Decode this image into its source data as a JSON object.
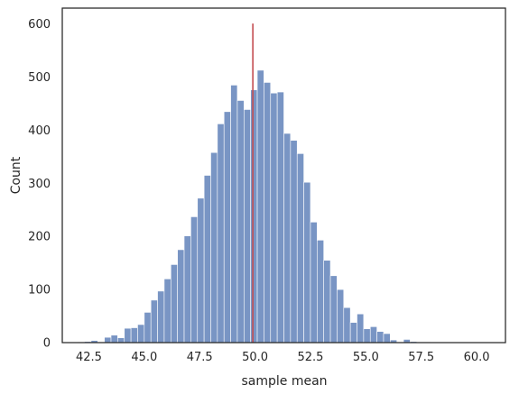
{
  "chart_data": {
    "type": "bar",
    "xlabel": "sample mean",
    "ylabel": "Count",
    "xlim": [
      41.3,
      61.3
    ],
    "ylim": [
      0,
      630
    ],
    "xticks": [
      "42.5",
      "45.0",
      "47.5",
      "50.0",
      "52.5",
      "55.0",
      "57.5",
      "60.0"
    ],
    "yticks": [
      "0",
      "100",
      "200",
      "300",
      "400",
      "500",
      "600"
    ],
    "grid": false,
    "bin_start": 42.0,
    "bin_width": 0.3,
    "values": [
      1,
      2,
      4,
      1,
      10,
      14,
      9,
      27,
      28,
      34,
      57,
      80,
      97,
      120,
      147,
      175,
      201,
      237,
      272,
      315,
      358,
      412,
      435,
      485,
      456,
      439,
      476,
      513,
      490,
      470,
      472,
      394,
      381,
      356,
      302,
      227,
      193,
      155,
      126,
      100,
      66,
      38,
      54,
      26,
      30,
      21,
      17,
      5,
      1,
      6,
      2,
      1,
      1
    ],
    "vline": {
      "x": 49.9,
      "y_from": 0,
      "y_to": 601,
      "color": "#c44e52"
    },
    "bar_color": "#4c72b0"
  }
}
